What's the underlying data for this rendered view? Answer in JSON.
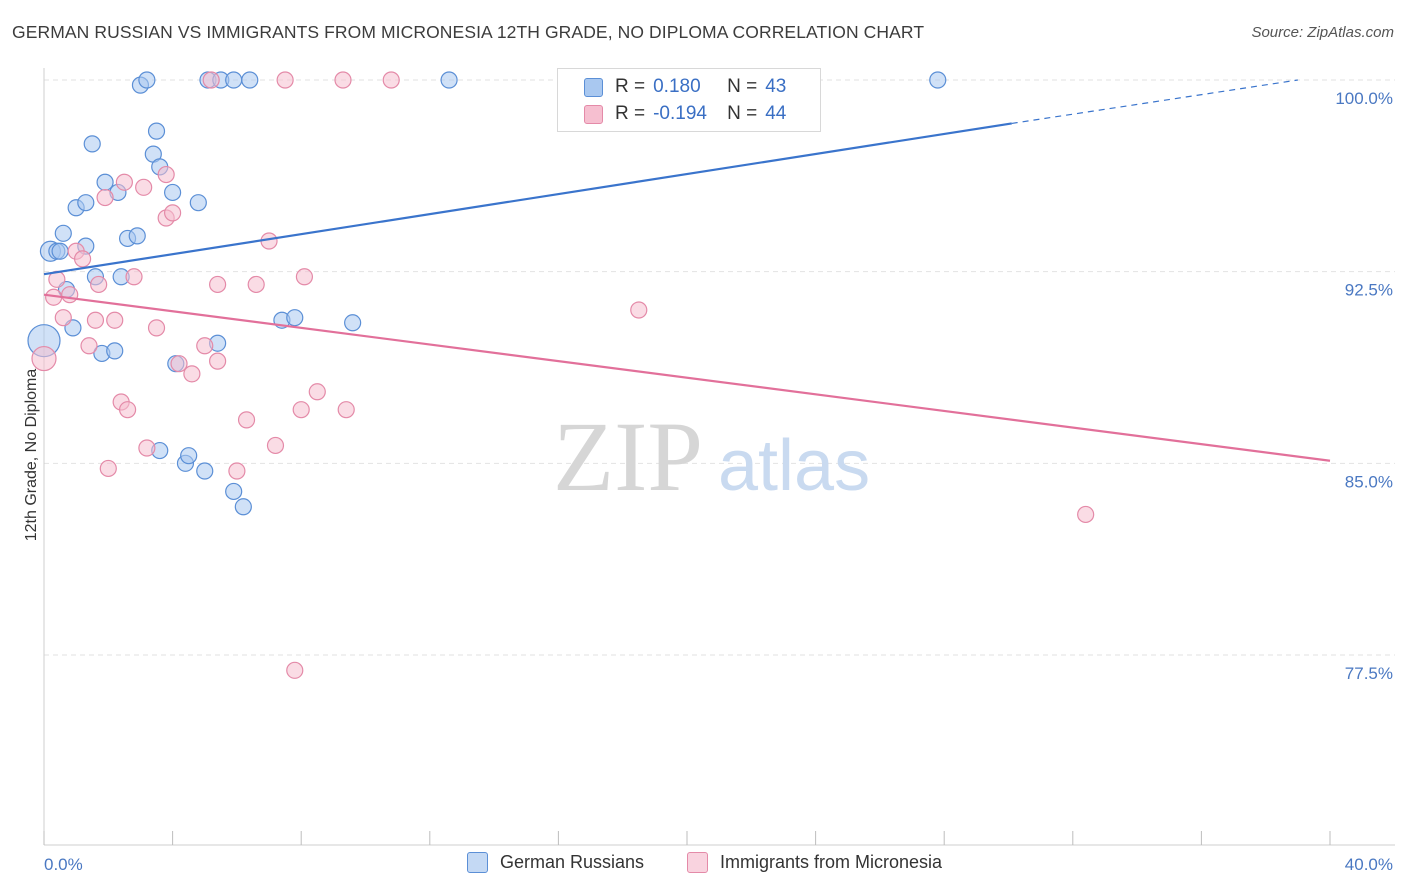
{
  "title": "GERMAN RUSSIAN VS IMMIGRANTS FROM MICRONESIA 12TH GRADE, NO DIPLOMA CORRELATION CHART",
  "source": "Source: ZipAtlas.com",
  "watermark": {
    "zip": "ZIP",
    "atlas": "atlas"
  },
  "legend": {
    "rows": [
      {
        "r_label": "R = ",
        "r_value": "0.180",
        "n_label": "N = ",
        "n_value": "43"
      },
      {
        "r_label": "R = ",
        "r_value": "-0.194",
        "n_label": "N = ",
        "n_value": "44"
      }
    ]
  },
  "chart_data": {
    "type": "scatter",
    "title": "GERMAN RUSSIAN VS IMMIGRANTS FROM MICRONESIA 12TH GRADE, NO DIPLOMA CORRELATION CHART",
    "xlabel": "",
    "ylabel": "12th Grade, No Diploma",
    "xlim": [
      0,
      40
    ],
    "ylim": [
      70,
      101
    ],
    "x_tick_labels": [
      "0.0%",
      "40.0%"
    ],
    "y_ticks": [
      {
        "value": 77.5,
        "label": "77.5%"
      },
      {
        "value": 85.0,
        "label": "85.0%"
      },
      {
        "value": 92.5,
        "label": "92.5%"
      },
      {
        "value": 100.0,
        "label": "100.0%"
      }
    ],
    "colors": {
      "blue_fill": "#a9c8f0",
      "blue_stroke": "#5b8fd6",
      "blue_line": "#3a74cc",
      "pink_fill": "#f6bfd0",
      "pink_stroke": "#e48aa8",
      "pink_line": "#e2709a",
      "tick_text": "#4a78c2"
    },
    "series": [
      {
        "name": "German Russians",
        "color": "#5b8fd6",
        "trend": {
          "x0": 0,
          "y0": 92.4,
          "x1": 30.1,
          "y1": 98.3,
          "dash_to_x": 39.0,
          "dash_to_y": 100.0
        },
        "points": [
          [
            0.0,
            89.8,
            16
          ],
          [
            0.2,
            93.3,
            10
          ],
          [
            0.4,
            93.3,
            8
          ],
          [
            0.5,
            93.3,
            8
          ],
          [
            0.6,
            94.0,
            8
          ],
          [
            0.7,
            91.8,
            8
          ],
          [
            0.9,
            90.3,
            8
          ],
          [
            1.0,
            95.0,
            8
          ],
          [
            1.3,
            95.2,
            8
          ],
          [
            1.3,
            93.5,
            8
          ],
          [
            1.5,
            97.5,
            8
          ],
          [
            1.6,
            92.3,
            8
          ],
          [
            1.8,
            89.3,
            8
          ],
          [
            1.9,
            96.0,
            8
          ],
          [
            2.2,
            89.4,
            8
          ],
          [
            2.3,
            95.6,
            8
          ],
          [
            2.4,
            92.3,
            8
          ],
          [
            2.6,
            93.8,
            8
          ],
          [
            2.9,
            93.9,
            8
          ],
          [
            3.0,
            99.8,
            8
          ],
          [
            3.2,
            100.0,
            8
          ],
          [
            3.4,
            97.1,
            8
          ],
          [
            3.5,
            98.0,
            8
          ],
          [
            3.6,
            96.6,
            8
          ],
          [
            3.6,
            85.5,
            8
          ],
          [
            4.0,
            95.6,
            8
          ],
          [
            4.1,
            88.9,
            8
          ],
          [
            4.4,
            85.0,
            8
          ],
          [
            4.5,
            85.3,
            8
          ],
          [
            4.8,
            95.2,
            8
          ],
          [
            5.0,
            84.7,
            8
          ],
          [
            5.1,
            100.0,
            8
          ],
          [
            5.4,
            89.7,
            8
          ],
          [
            5.5,
            100.0,
            8
          ],
          [
            5.9,
            100.0,
            8
          ],
          [
            5.9,
            83.9,
            8
          ],
          [
            6.2,
            83.3,
            8
          ],
          [
            6.4,
            100.0,
            8
          ],
          [
            7.4,
            90.6,
            8
          ],
          [
            7.8,
            90.7,
            8
          ],
          [
            9.6,
            90.5,
            8
          ],
          [
            12.6,
            100.0,
            8
          ],
          [
            27.8,
            100.0,
            8
          ]
        ]
      },
      {
        "name": "Immigrants from Micronesia",
        "color": "#e48aa8",
        "trend": {
          "x0": 0,
          "y0": 91.6,
          "x1": 40.0,
          "y1": 85.1
        },
        "points": [
          [
            0.0,
            89.1,
            12
          ],
          [
            0.3,
            91.5,
            8
          ],
          [
            0.4,
            92.2,
            8
          ],
          [
            0.6,
            90.7,
            8
          ],
          [
            0.8,
            91.6,
            8
          ],
          [
            1.0,
            93.3,
            8
          ],
          [
            1.2,
            93.0,
            8
          ],
          [
            1.4,
            89.6,
            8
          ],
          [
            1.6,
            90.6,
            8
          ],
          [
            1.7,
            92.0,
            8
          ],
          [
            1.9,
            95.4,
            8
          ],
          [
            2.0,
            84.8,
            8
          ],
          [
            2.2,
            90.6,
            8
          ],
          [
            2.4,
            87.4,
            8
          ],
          [
            2.5,
            96.0,
            8
          ],
          [
            2.6,
            87.1,
            8
          ],
          [
            2.8,
            92.3,
            8
          ],
          [
            3.1,
            95.8,
            8
          ],
          [
            3.2,
            85.6,
            8
          ],
          [
            3.5,
            90.3,
            8
          ],
          [
            3.8,
            96.3,
            8
          ],
          [
            3.8,
            94.6,
            8
          ],
          [
            4.0,
            94.8,
            8
          ],
          [
            4.2,
            88.9,
            8
          ],
          [
            4.6,
            88.5,
            8
          ],
          [
            5.0,
            89.6,
            8
          ],
          [
            5.2,
            100.0,
            8
          ],
          [
            5.4,
            92.0,
            8
          ],
          [
            5.4,
            89.0,
            8
          ],
          [
            6.0,
            84.7,
            8
          ],
          [
            6.3,
            86.7,
            8
          ],
          [
            6.6,
            92.0,
            8
          ],
          [
            7.0,
            93.7,
            8
          ],
          [
            7.2,
            85.7,
            8
          ],
          [
            7.5,
            100.0,
            8
          ],
          [
            7.8,
            76.9,
            8
          ],
          [
            8.0,
            87.1,
            8
          ],
          [
            8.1,
            92.3,
            8
          ],
          [
            8.5,
            87.8,
            8
          ],
          [
            9.3,
            100.0,
            8
          ],
          [
            9.4,
            87.1,
            8
          ],
          [
            10.8,
            100.0,
            8
          ],
          [
            18.5,
            91.0,
            8
          ],
          [
            32.4,
            83.0,
            8
          ]
        ]
      }
    ]
  },
  "bottom_legend": [
    {
      "label": "German Russians"
    },
    {
      "label": "Immigrants from Micronesia"
    }
  ]
}
